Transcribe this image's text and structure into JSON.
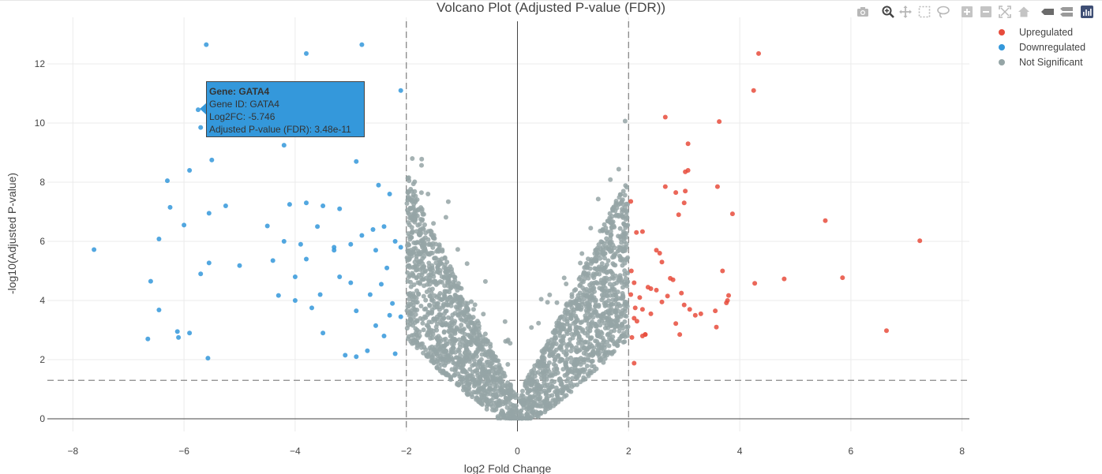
{
  "title": "Volcano Plot (Adjusted P-value (FDR))",
  "modebar": [
    {
      "name": "camera-icon",
      "title": "Download plot as a png"
    },
    {
      "name": "zoom-icon",
      "title": "Zoom"
    },
    {
      "name": "pan-icon",
      "title": "Pan"
    },
    {
      "name": "box-select-icon",
      "title": "Box Select"
    },
    {
      "name": "lasso-select-icon",
      "title": "Lasso Select"
    },
    {
      "name": "zoom-in-icon",
      "title": "Zoom in"
    },
    {
      "name": "zoom-out-icon",
      "title": "Zoom out"
    },
    {
      "name": "autoscale-icon",
      "title": "Autoscale"
    },
    {
      "name": "reset-axes-icon",
      "title": "Reset axes"
    },
    {
      "name": "spike-lines-icon",
      "title": "Toggle Spike Lines"
    },
    {
      "name": "hover-compare-icon",
      "title": "Compare data on hover"
    },
    {
      "name": "plotly-logo-icon",
      "title": "Produced with Plotly"
    }
  ],
  "tooltip": {
    "gene": "Gene: GATA4",
    "gene_id": "Gene ID: GATA4",
    "log2fc": "Log2FC: -5.746",
    "padj": "Adjusted P-value (FDR): 3.48e-11"
  },
  "colors": {
    "up": "#e74c3c",
    "down": "#3498db",
    "ns": "#95a5a6"
  },
  "chart_data": {
    "type": "scatter",
    "title": "Volcano Plot (Adjusted P-value (FDR))",
    "xlabel": "log2 Fold Change",
    "ylabel": "-log10(Adjusted P-value)",
    "xlim": [
      -8.8,
      8.2
    ],
    "ylim": [
      -0.6,
      13.5
    ],
    "xticks": [
      -8,
      -6,
      -4,
      -2,
      0,
      2,
      4,
      6,
      8
    ],
    "yticks": [
      0,
      2,
      4,
      6,
      8,
      10,
      12
    ],
    "grid": true,
    "legend_position": "top-right",
    "thresholds": {
      "log2fc": [
        -2,
        2
      ],
      "neg_log10_padj": 1.301
    },
    "series": [
      {
        "name": "Upregulated",
        "color": "#e74c3c",
        "x": [
          4.34,
          4.25,
          2.66,
          3.63,
          3.07,
          3.07,
          3.02,
          2.04,
          3.87,
          3.6,
          5.54,
          7.24,
          2.66,
          2.85,
          2.9,
          3.02,
          3.0,
          3.56,
          2.14,
          2.25,
          3.69,
          2.5,
          2.56,
          2.6,
          2.1,
          2.4,
          2.75,
          2.8,
          2.12,
          4.8,
          5.85,
          4.27,
          2.04,
          2.2,
          2.35,
          3.8,
          3.3,
          3.78,
          3.76,
          2.7,
          2.1,
          3.0,
          3.2,
          2.3,
          3.58,
          2.85,
          2.25,
          2.3,
          6.64,
          2.92,
          2.06,
          2.1,
          3.1,
          2.5,
          2.95,
          2.05,
          2.25,
          2.15,
          2.6,
          2.4
        ],
        "y": [
          12.35,
          11.1,
          10.2,
          10.05,
          9.3,
          8.4,
          8.35,
          7.35,
          6.93,
          7.85,
          6.7,
          6.02,
          7.85,
          7.65,
          6.9,
          7.7,
          7.3,
          3.65,
          6.3,
          6.33,
          5.0,
          5.7,
          5.6,
          5.3,
          4.6,
          4.4,
          4.75,
          4.7,
          3.75,
          4.73,
          4.77,
          4.58,
          4.2,
          4.1,
          4.45,
          4.17,
          3.55,
          4.0,
          3.92,
          4.15,
          3.4,
          3.85,
          3.5,
          2.85,
          3.1,
          3.22,
          2.8,
          2.85,
          2.98,
          2.85,
          2.75,
          1.88,
          3.7,
          4.35,
          4.25,
          5.0,
          3.7,
          3.3,
          3.95,
          3.55
        ]
      },
      {
        "name": "Downregulated",
        "color": "#3498db",
        "x": [
          -5.6,
          -2.8,
          -3.8,
          -2.1,
          -5.746,
          -5.7,
          -3.4,
          -4.2,
          -5.5,
          -5.9,
          -6.3,
          -6.25,
          -5.25,
          -5.55,
          -4.5,
          -4.1,
          -3.8,
          -3.5,
          -3.2,
          -2.9,
          -2.5,
          -2.3,
          -6.0,
          -6.45,
          -7.62,
          -5.0,
          -5.55,
          -5.7,
          -6.6,
          -4.3,
          -4.0,
          -3.9,
          -3.6,
          -3.3,
          -3.0,
          -2.8,
          -2.6,
          -2.4,
          -2.2,
          -2.1,
          -6.45,
          -6.1,
          -6.12,
          -5.9,
          -5.57,
          -4.4,
          -4.2,
          -3.7,
          -3.5,
          -3.1,
          -2.9,
          -2.7,
          -2.4,
          -2.3,
          -2.1,
          -3.55,
          -6.65,
          -3.2,
          -2.65,
          -2.55,
          -2.35,
          -4.0,
          -3.8,
          -3.3,
          -2.9,
          -2.55,
          -2.45,
          -2.25,
          -2.2,
          -3.0
        ],
        "y": [
          12.65,
          12.65,
          12.35,
          11.1,
          10.45,
          9.85,
          10.0,
          9.25,
          8.75,
          8.4,
          8.05,
          7.15,
          7.2,
          6.95,
          6.52,
          7.25,
          7.3,
          7.2,
          7.1,
          8.7,
          7.9,
          7.6,
          6.55,
          6.08,
          5.72,
          5.18,
          5.27,
          4.9,
          4.65,
          4.17,
          4.0,
          5.9,
          6.5,
          5.8,
          5.9,
          6.2,
          6.4,
          6.5,
          6.0,
          5.8,
          3.68,
          2.75,
          2.95,
          2.9,
          2.05,
          5.35,
          6.0,
          3.75,
          2.9,
          2.15,
          2.1,
          2.3,
          2.8,
          3.5,
          3.45,
          4.2,
          2.7,
          4.8,
          4.2,
          5.7,
          5.1,
          4.8,
          5.4,
          5.7,
          3.65,
          3.15,
          4.55,
          3.9,
          2.2,
          4.6
        ]
      },
      {
        "name": "Not Significant",
        "color": "#95a5a6",
        "count": 2400,
        "x_range": [
          -1.99,
          1.99
        ],
        "y_min": 0.0,
        "y_max_observed": 11.35
      }
    ]
  }
}
